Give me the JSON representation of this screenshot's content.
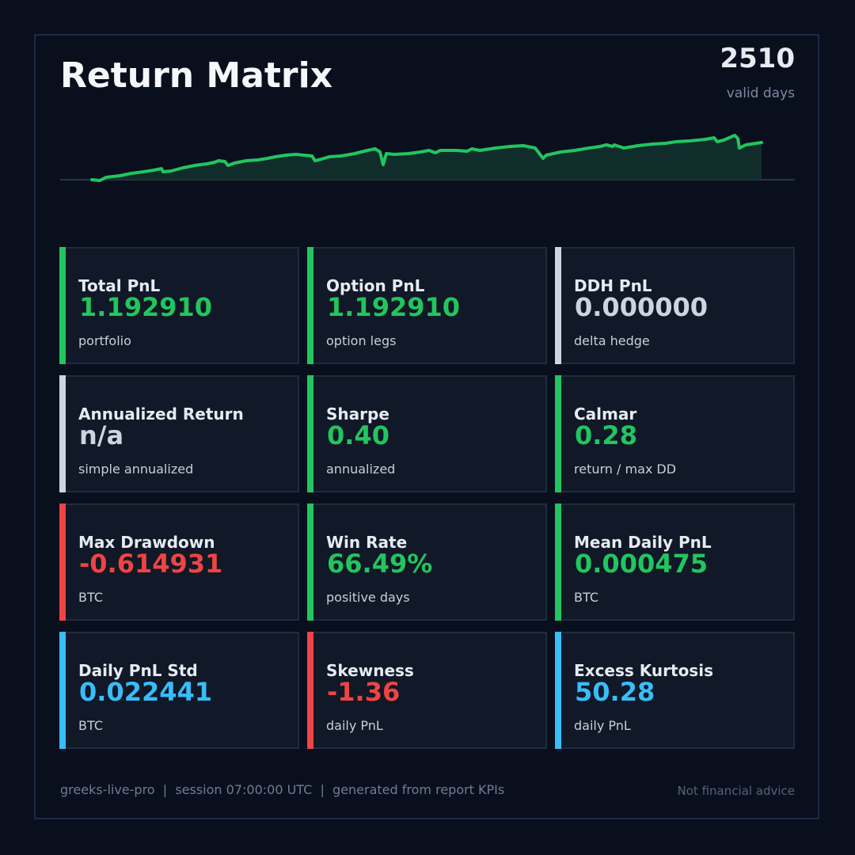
{
  "header": {
    "title": "Return Matrix",
    "valid_days": "2510",
    "valid_days_label": "valid days"
  },
  "colors": {
    "green": "#22c55e",
    "red": "#ef4444",
    "blue": "#38bdf8",
    "neutral": "#cbd5e1"
  },
  "kpis": [
    {
      "label": "Total PnL",
      "value": "1.192910",
      "sub": "portfolio",
      "tone": "green"
    },
    {
      "label": "Option PnL",
      "value": "1.192910",
      "sub": "option legs",
      "tone": "green"
    },
    {
      "label": "DDH PnL",
      "value": "0.000000",
      "sub": "delta hedge",
      "tone": "neutral"
    },
    {
      "label": "Annualized Return",
      "value": "n/a",
      "sub": "simple annualized",
      "tone": "neutral"
    },
    {
      "label": "Sharpe",
      "value": "0.40",
      "sub": "annualized",
      "tone": "green"
    },
    {
      "label": "Calmar",
      "value": "0.28",
      "sub": "return / max DD",
      "tone": "green"
    },
    {
      "label": "Max Drawdown",
      "value": "-0.614931",
      "sub": "BTC",
      "tone": "red"
    },
    {
      "label": "Win Rate",
      "value": "66.49%",
      "sub": "positive days",
      "tone": "green"
    },
    {
      "label": "Mean Daily PnL",
      "value": "0.000475",
      "sub": "BTC",
      "tone": "green"
    },
    {
      "label": "Daily PnL Std",
      "value": "0.022441",
      "sub": "BTC",
      "tone": "blue"
    },
    {
      "label": "Skewness",
      "value": "-1.36",
      "sub": "daily PnL",
      "tone": "red"
    },
    {
      "label": "Excess Kurtosis",
      "value": "50.28",
      "sub": "daily PnL",
      "tone": "blue"
    }
  ],
  "footer": {
    "left": "greeks-live-pro  |  session 07:00:00 UTC  |  generated from report KPIs",
    "right": "Not financial advice"
  }
}
